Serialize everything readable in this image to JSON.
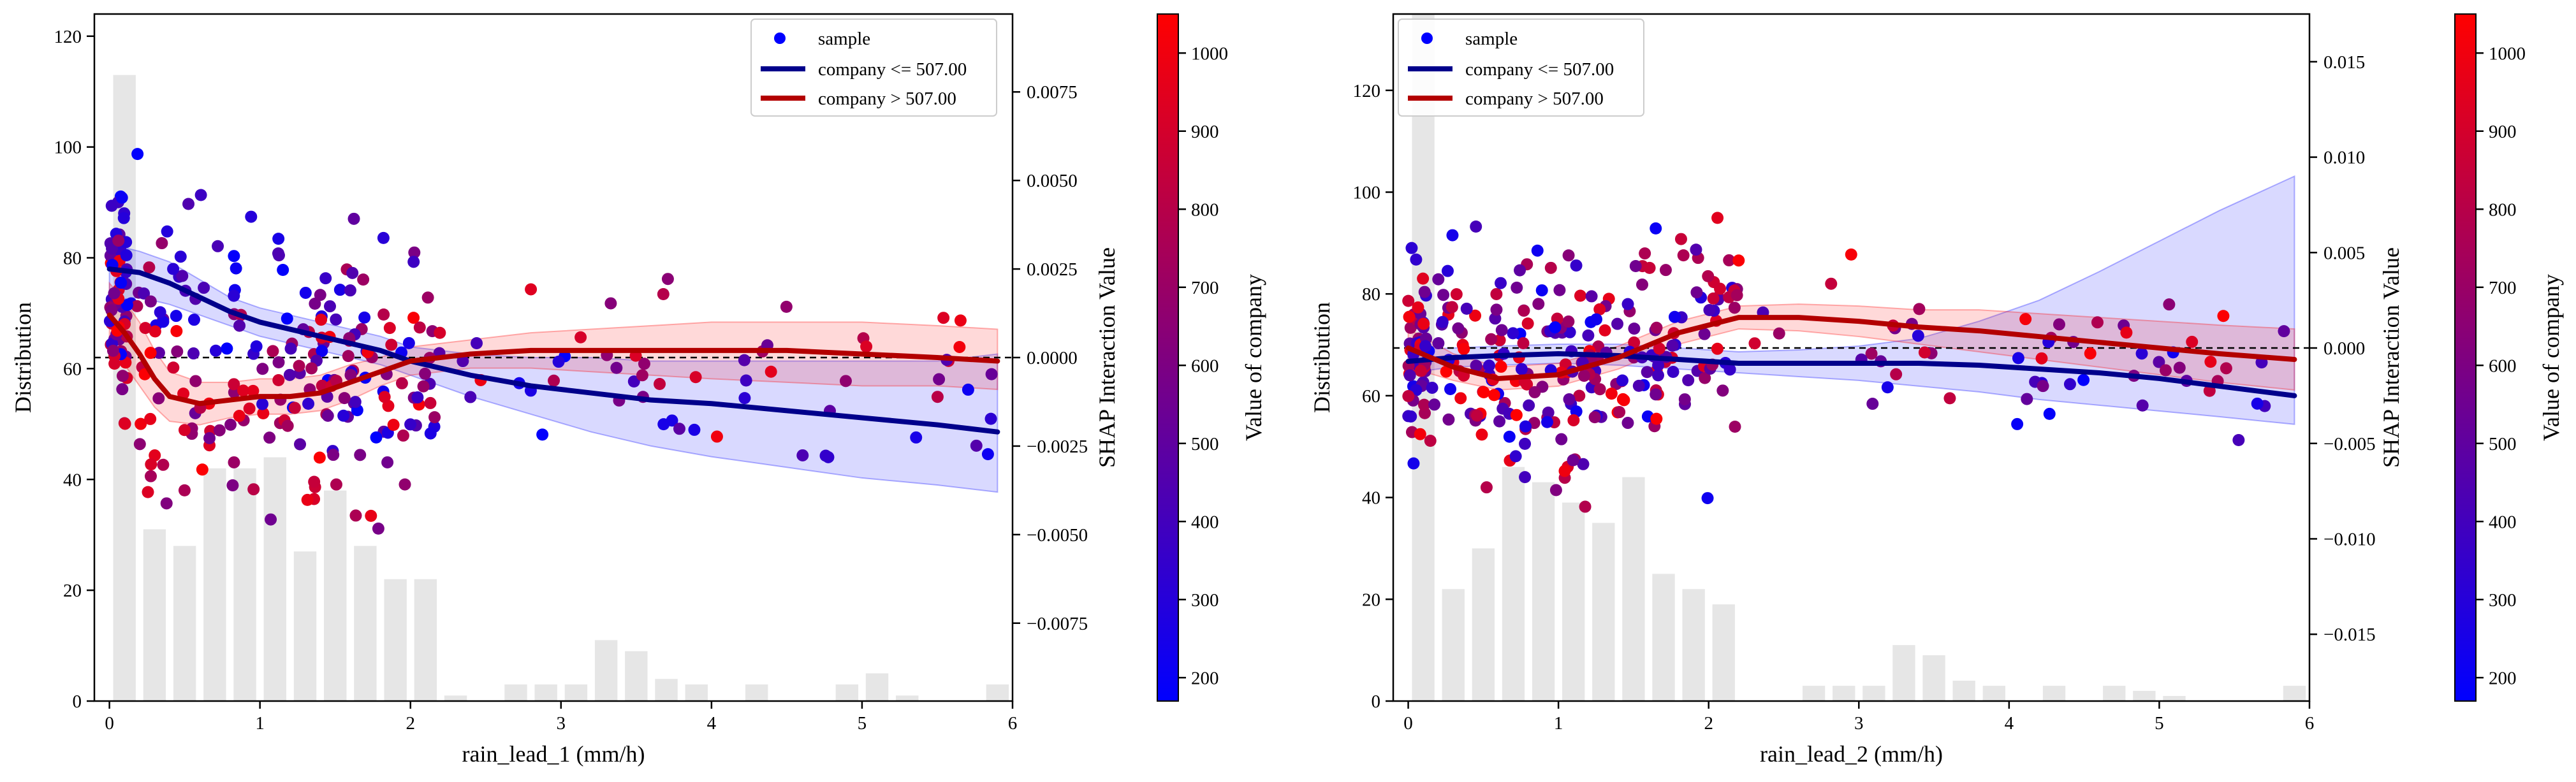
{
  "chart_data": [
    {
      "type": "scatter",
      "xlabel": "rain_lead_1 (mm/h)",
      "ylabel": "Distribution",
      "y2label": "SHAP Interaction Value",
      "xlim": [
        -0.1,
        6.0
      ],
      "xticks": [
        0,
        1,
        2,
        3,
        4,
        5,
        6
      ],
      "ylim": [
        0,
        124
      ],
      "yticks": [
        0,
        20,
        40,
        60,
        80,
        100,
        120
      ],
      "y2lim": [
        -0.0097,
        0.0097
      ],
      "y2ticks": [
        -0.0075,
        -0.005,
        -0.0025,
        0.0,
        0.0025,
        0.005,
        0.0075
      ],
      "y2ticklabels": [
        "−0.0075",
        "−0.0050",
        "−0.0025",
        "0.0000",
        "0.0025",
        "0.0050",
        "0.0075"
      ],
      "histogram": {
        "bin_centers": [
          0.1,
          0.3,
          0.5,
          0.7,
          0.9,
          1.1,
          1.3,
          1.5,
          1.7,
          1.9,
          2.1,
          2.3,
          2.5,
          2.7,
          2.9,
          3.1,
          3.3,
          3.5,
          3.7,
          3.9,
          4.1,
          4.3,
          4.5,
          4.7,
          4.9,
          5.1,
          5.3,
          5.5,
          5.7,
          5.9
        ],
        "counts": [
          113,
          31,
          28,
          42,
          42,
          44,
          27,
          38,
          28,
          22,
          22,
          1,
          0,
          3,
          3,
          3,
          11,
          9,
          4,
          3,
          0,
          3,
          0,
          0,
          3,
          5,
          1,
          0,
          0,
          3
        ]
      },
      "zero_line": 0.0,
      "series": [
        {
          "name": "company <= 507.00",
          "color": "#00008b",
          "x": [
            0.0,
            0.2,
            0.4,
            0.6,
            0.8,
            1.0,
            1.2,
            1.4,
            1.6,
            1.8,
            2.0,
            2.4,
            2.8,
            3.2,
            3.6,
            4.0,
            4.5,
            5.0,
            5.5,
            5.9
          ],
          "y": [
            0.0025,
            0.0024,
            0.0021,
            0.0017,
            0.0013,
            0.001,
            0.0008,
            0.0006,
            0.0004,
            0.0002,
            -0.0001,
            -0.0005,
            -0.0008,
            -0.001,
            -0.0012,
            -0.0013,
            -0.0015,
            -0.0017,
            -0.0019,
            -0.0021
          ],
          "band_lower": [
            0.0016,
            0.0017,
            0.0015,
            0.0012,
            0.0009,
            0.0006,
            0.0004,
            0.0002,
            0.0,
            -0.0002,
            -0.0005,
            -0.0011,
            -0.0016,
            -0.0021,
            -0.0025,
            -0.0028,
            -0.0031,
            -0.0034,
            -0.0036,
            -0.0038
          ],
          "band_upper": [
            0.0032,
            0.003,
            0.0027,
            0.0022,
            0.0017,
            0.0014,
            0.0012,
            0.001,
            0.0008,
            0.0006,
            0.0003,
            0.0001,
            0.0,
            0.0,
            -0.0001,
            -0.0001,
            -0.0001,
            -0.0001,
            -0.0001,
            0.0001
          ]
        },
        {
          "name": "company > 507.00",
          "color": "#b30000",
          "x": [
            0.0,
            0.1,
            0.2,
            0.3,
            0.4,
            0.6,
            0.8,
            1.0,
            1.2,
            1.4,
            1.6,
            1.8,
            2.0,
            2.4,
            2.8,
            3.2,
            3.6,
            4.0,
            4.5,
            5.0,
            5.5,
            5.9
          ],
          "y": [
            0.0012,
            0.0007,
            0.0001,
            -0.0006,
            -0.0011,
            -0.0013,
            -0.0012,
            -0.0011,
            -0.0011,
            -0.001,
            -0.0007,
            -0.0004,
            -0.0001,
            0.0001,
            0.0002,
            0.0002,
            0.0002,
            0.0002,
            0.0002,
            0.0001,
            0.0,
            -0.0001
          ],
          "band_lower": [
            0.0003,
            -0.0002,
            -0.0008,
            -0.0014,
            -0.0018,
            -0.0019,
            -0.0017,
            -0.0016,
            -0.0016,
            -0.0015,
            -0.0012,
            -0.0008,
            -0.0005,
            -0.0003,
            -0.0003,
            -0.0004,
            -0.0005,
            -0.0006,
            -0.0007,
            -0.0008,
            -0.0008,
            -0.0009
          ],
          "band_upper": [
            0.0021,
            0.0016,
            0.001,
            0.0002,
            -0.0004,
            -0.0007,
            -0.0007,
            -0.0006,
            -0.0006,
            -0.0005,
            -0.0002,
            0.0,
            0.0003,
            0.0005,
            0.0007,
            0.0008,
            0.0009,
            0.001,
            0.001,
            0.001,
            0.0009,
            0.0008
          ]
        }
      ],
      "scatter_seed": 11,
      "scatter_count": 330
    },
    {
      "type": "scatter",
      "xlabel": "rain_lead_2 (mm/h)",
      "ylabel": "Distribution",
      "y2label": "SHAP Interaction Value",
      "xlim": [
        -0.1,
        6.0
      ],
      "xticks": [
        0,
        1,
        2,
        3,
        4,
        5,
        6
      ],
      "ylim": [
        0,
        135
      ],
      "yticks": [
        0,
        20,
        40,
        60,
        80,
        100,
        120
      ],
      "y2lim": [
        -0.0185,
        0.0175
      ],
      "y2ticks": [
        -0.015,
        -0.01,
        -0.005,
        0.0,
        0.005,
        0.01,
        0.015
      ],
      "y2ticklabels": [
        "−0.015",
        "−0.010",
        "−0.005",
        "0.000",
        "0.005",
        "0.010",
        "0.015"
      ],
      "histogram": {
        "bin_centers": [
          0.1,
          0.3,
          0.5,
          0.7,
          0.9,
          1.1,
          1.3,
          1.5,
          1.7,
          1.9,
          2.1,
          2.3,
          2.5,
          2.7,
          2.9,
          3.1,
          3.3,
          3.5,
          3.7,
          3.9,
          4.1,
          4.3,
          4.5,
          4.7,
          4.9,
          5.1,
          5.3,
          5.5,
          5.7,
          5.9
        ],
        "counts": [
          135,
          22,
          30,
          46,
          43,
          39,
          35,
          44,
          25,
          22,
          19,
          0,
          0,
          3,
          3,
          3,
          11,
          9,
          4,
          3,
          0,
          3,
          0,
          3,
          2,
          1,
          0,
          0,
          0,
          3
        ]
      },
      "zero_line": 0.0,
      "series": [
        {
          "name": "company <= 507.00",
          "color": "#00008b",
          "x": [
            0.0,
            0.3,
            0.6,
            1.0,
            1.4,
            1.8,
            2.2,
            2.6,
            3.0,
            3.4,
            3.8,
            4.2,
            4.6,
            5.0,
            5.4,
            5.9
          ],
          "y": [
            -0.0007,
            -0.0005,
            -0.0004,
            -0.0003,
            -0.0004,
            -0.0006,
            -0.0008,
            -0.0008,
            -0.0008,
            -0.0008,
            -0.0009,
            -0.0011,
            -0.0013,
            -0.0016,
            -0.002,
            -0.0025
          ],
          "band_lower": [
            -0.0013,
            -0.001,
            -0.0009,
            -0.0008,
            -0.0009,
            -0.0011,
            -0.0013,
            -0.0015,
            -0.0017,
            -0.002,
            -0.0023,
            -0.0027,
            -0.003,
            -0.0033,
            -0.0036,
            -0.004
          ],
          "band_upper": [
            -0.0001,
            0.0,
            0.0001,
            0.0002,
            0.0002,
            0.0,
            -0.0002,
            -0.0001,
            0.0001,
            0.0005,
            0.0014,
            0.0025,
            0.004,
            0.0056,
            0.0072,
            0.009
          ]
        },
        {
          "name": "company > 507.00",
          "color": "#b30000",
          "x": [
            0.0,
            0.3,
            0.6,
            1.0,
            1.4,
            1.8,
            2.2,
            2.6,
            3.0,
            3.4,
            3.8,
            4.2,
            4.6,
            5.0,
            5.4,
            5.9
          ],
          "y": [
            0.0,
            -0.001,
            -0.0016,
            -0.0014,
            -0.0005,
            0.0008,
            0.0016,
            0.0016,
            0.0014,
            0.0011,
            0.0009,
            0.0006,
            0.0003,
            0.0,
            -0.0003,
            -0.0006
          ],
          "band_lower": [
            -0.001,
            -0.0017,
            -0.0022,
            -0.002,
            -0.0011,
            0.0002,
            0.001,
            0.0009,
            0.0006,
            0.0002,
            -0.0002,
            -0.0006,
            -0.001,
            -0.0014,
            -0.0018,
            -0.0022
          ],
          "band_upper": [
            0.001,
            -0.0003,
            -0.001,
            -0.0008,
            0.0001,
            0.0014,
            0.0022,
            0.0023,
            0.0022,
            0.002,
            0.002,
            0.0018,
            0.0016,
            0.0014,
            0.0012,
            0.001
          ]
        }
      ],
      "scatter_seed": 29,
      "scatter_count": 360
    }
  ],
  "legend": {
    "sample_label": "sample",
    "low_label": "company <= 507.00",
    "high_label": "company > 507.00"
  },
  "colorbar": {
    "label": "Value of company",
    "ticks": [
      200,
      300,
      400,
      500,
      600,
      700,
      800,
      900,
      1000
    ],
    "range": [
      170,
      1050
    ],
    "low_color": "#0000ff",
    "high_color": "#ff0000"
  },
  "colors": {
    "histogram": "#e6e6e6",
    "low_band": "#0000ff",
    "high_band": "#ff0000",
    "sample": "#0000ff"
  }
}
